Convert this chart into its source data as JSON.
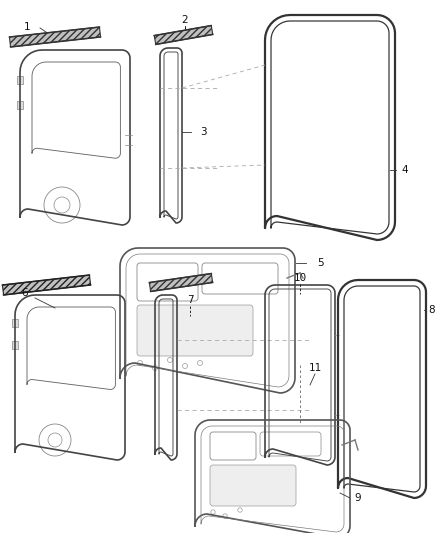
{
  "background_color": "#ffffff",
  "line_color": "#555555",
  "dark_line_color": "#111111",
  "label_fontsize": 7.5,
  "hatch_color": "#888888",
  "dashed_color": "#999999"
}
